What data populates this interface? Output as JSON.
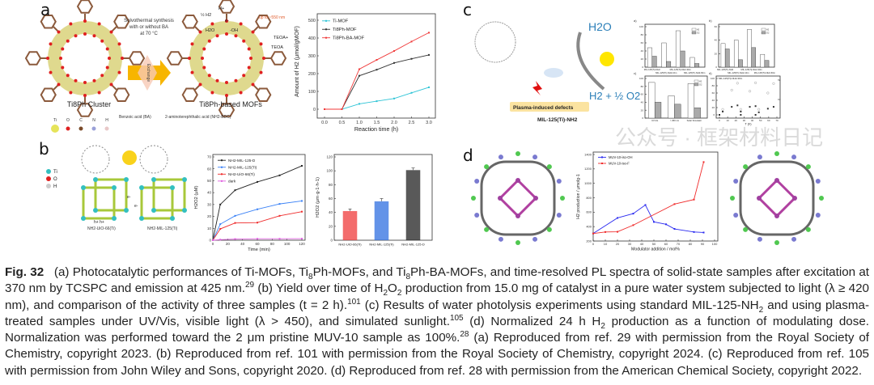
{
  "panels": {
    "a": {
      "label": "a",
      "cluster_label": "Ti8Ph Cluster",
      "mof_label": "Ti8Ph-based MOFs",
      "synthesis_text": [
        "Solvothermal synthesis",
        "with or without BA",
        "at 70 °C"
      ],
      "exchange_label": "Exchange",
      "light_label": "up to ~550 nm",
      "reaction_labels": [
        "½ H2",
        "H+",
        "e-",
        "H2O",
        "-OH",
        "TEOA+",
        "TEOA"
      ],
      "legend_atoms": [
        "Ti",
        "O",
        "C",
        "N",
        "H"
      ],
      "ligand_labels": [
        "Benzoic acid (BA)",
        "2-aminoterephthalic acid (NH2-BDC)"
      ]
    },
    "b": {
      "label": "b",
      "atom_legend": [
        "Ti",
        "O",
        "H"
      ],
      "scheme_labels": [
        "h+ h+",
        "e-",
        "e-",
        "NH2-UiO-66(Ti)",
        "NH2-MIL-125(Ti)"
      ]
    },
    "c": {
      "label": "c",
      "h2o": "H2O",
      "products": "H2 + ½ O2",
      "defects_label": "Plasma-induced defects",
      "material_label": "MIL-125(Ti)-NH2",
      "sub_labels": [
        "a)",
        "b)",
        "c)",
        "d)"
      ]
    },
    "d": {
      "label": "d"
    }
  },
  "colors": {
    "ti_mof": "#2ec4d6",
    "ti8ph_mof": "#333333",
    "ti8ph_ba_mof": "#f03a3a",
    "nh2_mil_125_d": "#222222",
    "nh2_mil_125_ti": "#3b82f6",
    "nh2_uio_66_ti": "#ef2b2b",
    "dark": "#e060e0",
    "muv_oh": "#2b2bf0",
    "muv_f": "#f02b2b",
    "sun": "#f9d21b",
    "arrow": "#f7b500"
  },
  "chart_data": [
    {
      "id": "a",
      "type": "line",
      "xlabel": "Reaction time (h)",
      "ylabel": "Amount of H2 (μmol/gMOF)",
      "xlim": [
        0,
        3
      ],
      "ylim": [
        0,
        500
      ],
      "xticks": [
        "0.0",
        "0.5",
        "1.0",
        "1.5",
        "2.0",
        "2.5",
        "3.0"
      ],
      "yticks": [
        "0",
        "100",
        "200",
        "300",
        "400",
        "500"
      ],
      "x": [
        0,
        0.5,
        1.0,
        1.5,
        2.0,
        2.5,
        3.0
      ],
      "legend": "top-left",
      "series": [
        {
          "name": "Ti-MOF",
          "color": "#2ec4d6",
          "values": [
            0,
            0,
            30,
            45,
            60,
            92,
            123
          ]
        },
        {
          "name": "Ti8Ph-MOF",
          "color": "#333333",
          "values": [
            0,
            0,
            188,
            222,
            260,
            283,
            305
          ]
        },
        {
          "name": "Ti8Ph-BA-MOF",
          "color": "#f03a3a",
          "values": [
            0,
            0,
            225,
            277,
            327,
            380,
            430
          ]
        }
      ]
    },
    {
      "id": "b1",
      "type": "line",
      "xlabel": "Time (min)",
      "ylabel": "H2O2 (μM)",
      "xlim": [
        0,
        120
      ],
      "ylim": [
        0,
        70
      ],
      "xticks": [
        "0",
        "20",
        "40",
        "60",
        "80",
        "100",
        "120"
      ],
      "yticks": [
        "0",
        "10",
        "20",
        "30",
        "40",
        "50",
        "60",
        "70"
      ],
      "x": [
        0,
        10,
        30,
        60,
        90,
        120
      ],
      "legend": "top-left",
      "series": [
        {
          "name": "NH2-MIL-125-D",
          "color": "#222222",
          "values": [
            0,
            30,
            42,
            49,
            54.5,
            62.5
          ]
        },
        {
          "name": "NH2-MIL-125(Ti)",
          "color": "#3b82f6",
          "values": [
            0,
            13.5,
            20.5,
            26,
            30.5,
            33
          ]
        },
        {
          "name": "NH2-UiO-66(Ti)",
          "color": "#ef2b2b",
          "values": [
            0,
            9.5,
            14.5,
            14.8,
            20.5,
            24
          ]
        },
        {
          "name": "dark",
          "color": "#e060e0",
          "values": [
            0,
            0.5,
            1,
            1.2,
            1.2,
            1.3
          ]
        }
      ]
    },
    {
      "id": "b2",
      "type": "bar",
      "ylabel": "H2O2 (μm·g-1·h-1)",
      "ylim": [
        0,
        120
      ],
      "yticks": [
        "0",
        "20",
        "40",
        "60",
        "80",
        "100",
        "120"
      ],
      "categories": [
        "NH2-UiO-66(Ti)",
        "NH2-MIL-125(Ti)",
        "NH2-MIL-125-D"
      ],
      "values": [
        42,
        56,
        101
      ],
      "errors": [
        3,
        4,
        3
      ],
      "bar_colors": [
        "#ef3b3b",
        "#2f6fe0",
        "#222222"
      ]
    },
    {
      "id": "d",
      "type": "line",
      "xlabel": "Modulator addition / mol%",
      "ylabel": "H2 production / μmolg-1",
      "xlim": [
        0,
        100
      ],
      "ylim": [
        200,
        1400
      ],
      "xticks": [
        "0",
        "10",
        "20",
        "30",
        "40",
        "50",
        "60",
        "70",
        "80",
        "90",
        "100"
      ],
      "yticks": [
        "200",
        "400",
        "600",
        "800",
        "1000",
        "1200",
        "1400"
      ],
      "legend": "top-left",
      "series": [
        {
          "name": "MUV-10-iso-OH",
          "color": "#2b2bf0",
          "x": [
            0,
            20,
            33,
            43,
            50,
            60,
            67,
            83,
            91
          ],
          "values": [
            305,
            520,
            580,
            700,
            465,
            432,
            368,
            325,
            318
          ]
        },
        {
          "name": "MUV-10-iso-F",
          "color": "#f02b2b",
          "x": [
            0,
            10,
            20,
            33,
            67,
            83,
            91
          ],
          "values": [
            305,
            325,
            328,
            420,
            712,
            775,
            1295
          ]
        }
      ]
    },
    {
      "id": "c_a",
      "type": "bar",
      "ylim": [
        0,
        100
      ],
      "yticks": [
        "0",
        "20",
        "40",
        "60",
        "80",
        "100"
      ],
      "categories": [
        "MIL-125(Ti)-NH2",
        "MIL-125(Ti)-NH2-10m",
        "MIL-125(Ti)-NH2-30m",
        "MIL-125(Ti)-NH2-60m"
      ],
      "series": [
        {
          "name": "H2",
          "values": [
            48,
            60,
            90,
            24
          ]
        },
        {
          "name": "O2",
          "values": [
            27,
            14,
            40,
            9
          ]
        }
      ]
    },
    {
      "id": "c_b",
      "type": "bar",
      "ylim": [
        0,
        60
      ],
      "yticks": [
        "0",
        "20",
        "40",
        "60"
      ],
      "categories": [
        "MIL-125(Ti)-NH2",
        "MIL-125(Ti)-NH2-10m",
        "MIL-125(Ti)-NH2-30m",
        "MIL-125(Ti)-NH2-60m"
      ],
      "series": [
        {
          "name": "H2",
          "values": [
            35,
            40,
            56,
            19
          ]
        },
        {
          "name": "O2",
          "values": [
            27,
            11,
            29,
            10
          ]
        }
      ]
    },
    {
      "id": "c_c",
      "type": "bar",
      "ylim": [
        0,
        100
      ],
      "yticks": [
        "0",
        "20",
        "40",
        "60",
        "80",
        "100"
      ],
      "categories": [
        "UV-Vis",
        "> 450 nm",
        "Solar Simulator"
      ],
      "series": [
        {
          "name": "H2",
          "values": [
            90,
            56,
            87
          ]
        },
        {
          "name": "O2",
          "values": [
            40,
            35,
            26
          ]
        }
      ]
    },
    {
      "id": "c_d",
      "type": "scatter",
      "title": "MIL-125(Ti)-NH2-30m",
      "xlabel": "T (h)",
      "xlim": [
        0,
        70
      ],
      "ylim": [
        0,
        100
      ],
      "xticks": [
        "0",
        "10",
        "20",
        "30",
        "40",
        "50",
        "60",
        "70"
      ],
      "yticks": [
        "0",
        "20",
        "40",
        "60",
        "80",
        "100"
      ],
      "series": [
        {
          "name": "H2",
          "x": [
            4,
            15,
            22,
            26,
            37,
            44,
            48,
            59,
            66
          ],
          "values": [
            15,
            68,
            87,
            15,
            65,
            88,
            15,
            60,
            86
          ]
        },
        {
          "name": "O2",
          "x": [
            0,
            4,
            15,
            22,
            26,
            26,
            37,
            44,
            44,
            48,
            59,
            66
          ],
          "values": [
            0,
            9,
            22,
            26,
            0,
            9,
            22,
            24,
            0,
            7,
            17,
            22
          ]
        }
      ]
    }
  ],
  "caption": {
    "fig_label": "Fig. 32",
    "text": [
      "(a) Photocatalytic performances of Ti-MOFs, Ti",
      "8",
      "Ph-MOFs, and Ti",
      "8",
      "Ph-BA-MOFs, and time-resolved PL spectra of solid-state samples after excitation at 370 nm by TCSPC and emission at 425 nm.",
      "29",
      " (b) Yield over time of H",
      "2",
      "O",
      "2",
      " production from 15.0 mg of catalyst in a pure water system subjected to light (λ ≥ 420 nm), and comparison of the activity of three samples (t = 2 h).",
      "101",
      " (c) Results of water photolysis experiments using standard MIL-125-NH",
      "2",
      " and using plasma-treated samples under UV/Vis, visible light (λ > 450), and simulated sunlight.",
      "105",
      " (d) Normalized 24 h H",
      "2",
      " production as a function of modulating dose. Normalization was performed toward the 2 μm pristine MUV-10 sample as 100%.",
      "28",
      " (a) Reproduced from ref. 29 with permission from the Royal Society of Chemistry, copyright 2023. (b) Reproduced from ref. 101 with permission from the Royal Society of Chemistry, copyright 2024. (c) Reproduced from ref. 105 with permission from John Wiley and Sons, copyright 2020. (d) Reproduced from ref. 28 with permission from the American Chemical Society, copyright 2022."
    ]
  },
  "watermark": "公众号 · 框架材料日记"
}
